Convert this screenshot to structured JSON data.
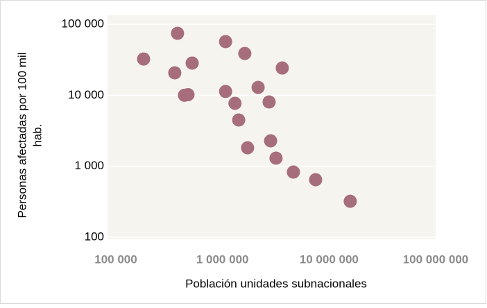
{
  "chart_data": {
    "type": "scatter",
    "x_label": "Población unidades subnacionales",
    "y_label": [
      "Personas  afectadas por 100 mil",
      "hab."
    ],
    "x_log": true,
    "y_log": true,
    "grid": true,
    "color": "#a66e7c",
    "xlim": [
      100000,
      100000000
    ],
    "ylim": [
      100,
      100000
    ],
    "xticks": [
      {
        "value": 100000,
        "label": "100 000"
      },
      {
        "value": 1000000,
        "label": "1 000 000"
      },
      {
        "value": 10000000,
        "label": "10 000 000"
      },
      {
        "value": 100000000,
        "label": "100 000 000"
      }
    ],
    "yticks": [
      100,
      {
        "value": 1000,
        "label": "1 000"
      },
      {
        "value": 10000,
        "label": "10 000"
      },
      {
        "value": 100000,
        "label": "100 000"
      }
    ],
    "x": [
      182000,
      379000,
      357000,
      520000,
      440000,
      475000,
      1070000,
      1620000,
      1070000,
      1310000,
      1420000,
      2160000,
      3640000,
      2740000,
      1720000,
      2830000,
      3180000,
      4630000,
      7480000,
      15800000
    ],
    "values": [
      32400,
      74600,
      20700,
      28400,
      10000,
      10200,
      57000,
      38800,
      11300,
      7700,
      4480,
      12900,
      24200,
      8040,
      1820,
      2280,
      1300,
      828,
      646,
      321
    ]
  }
}
